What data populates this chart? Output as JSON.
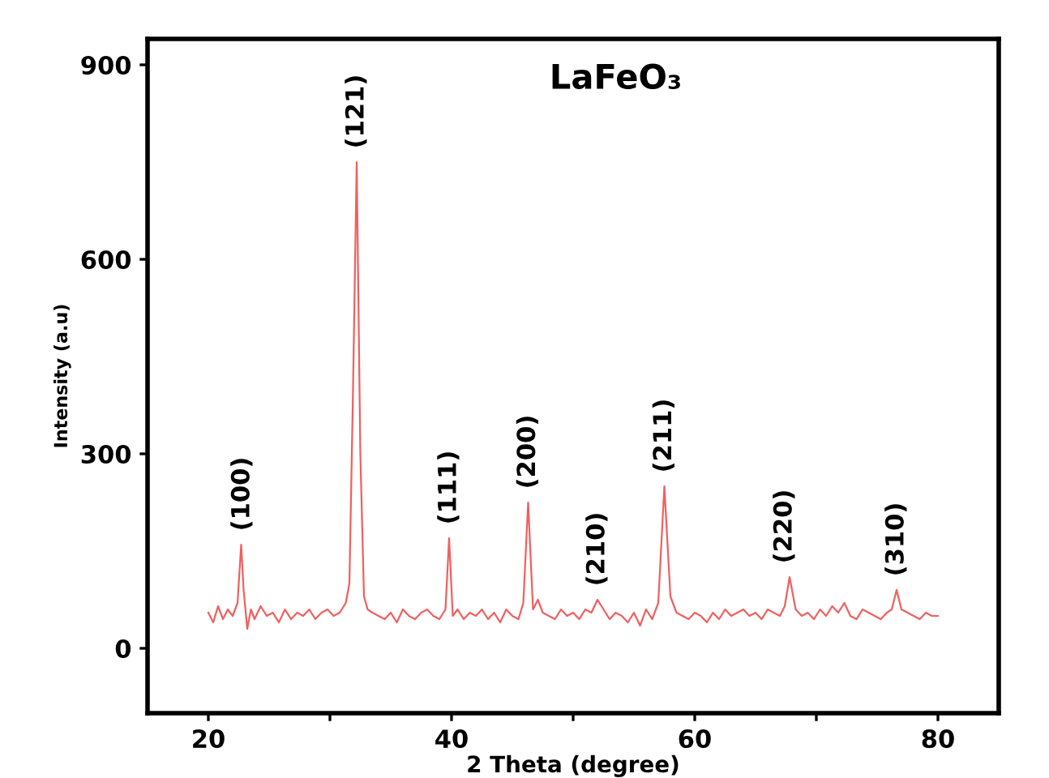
{
  "chart_data": {
    "type": "line",
    "title": "LaFeO₃",
    "xlabel": "2 Theta (degree)",
    "ylabel": "Intensity (a.u)",
    "xlim": [
      15,
      85
    ],
    "ylim": [
      -100,
      940
    ],
    "xticks": [
      20,
      {
        "value": 30,
        "label": null
      },
      40,
      {
        "value": 50,
        "label": null
      },
      60,
      {
        "value": 70,
        "label": null
      },
      80
    ],
    "yticks": [
      0,
      300,
      600,
      900
    ],
    "grid": false,
    "series": [
      {
        "color": "#f06060",
        "x": [
          20.0,
          20.4,
          20.8,
          21.2,
          21.6,
          22.0,
          22.4,
          22.7,
          22.9,
          23.2,
          23.5,
          23.8,
          24.3,
          24.8,
          25.3,
          25.8,
          26.3,
          26.8,
          27.3,
          27.8,
          28.3,
          28.8,
          29.3,
          29.8,
          30.3,
          30.8,
          31.3,
          31.6,
          31.9,
          32.2,
          32.5,
          32.8,
          33.1,
          33.5,
          34.0,
          34.5,
          35.0,
          35.5,
          36.0,
          36.5,
          37.0,
          37.5,
          38.0,
          38.5,
          39.0,
          39.5,
          39.8,
          40.1,
          40.5,
          41.0,
          41.5,
          42.0,
          42.5,
          43.0,
          43.5,
          44.0,
          44.5,
          45.0,
          45.5,
          45.9,
          46.3,
          46.7,
          47.1,
          47.5,
          48.0,
          48.5,
          49.0,
          49.5,
          50.0,
          50.5,
          51.0,
          51.5,
          52.0,
          52.5,
          53.0,
          53.5,
          54.0,
          54.5,
          55.0,
          55.5,
          56.0,
          56.5,
          57.0,
          57.5,
          58.0,
          58.5,
          59.0,
          59.5,
          60.0,
          60.5,
          61.0,
          61.5,
          62.0,
          62.5,
          63.0,
          63.5,
          64.0,
          64.5,
          65.0,
          65.5,
          66.0,
          66.5,
          67.0,
          67.4,
          67.8,
          68.3,
          68.8,
          69.3,
          69.8,
          70.3,
          70.8,
          71.3,
          71.8,
          72.3,
          72.8,
          73.3,
          73.8,
          74.3,
          74.8,
          75.3,
          75.8,
          76.2,
          76.6,
          77.0,
          77.5,
          78.0,
          78.5,
          79.0,
          79.5,
          80.0
        ],
        "values": [
          55,
          40,
          65,
          45,
          60,
          50,
          70,
          160,
          90,
          30,
          60,
          45,
          65,
          50,
          55,
          40,
          60,
          45,
          55,
          50,
          60,
          45,
          55,
          60,
          50,
          55,
          70,
          100,
          400,
          750,
          300,
          80,
          60,
          55,
          50,
          45,
          55,
          40,
          60,
          50,
          45,
          55,
          60,
          50,
          45,
          60,
          170,
          50,
          60,
          45,
          55,
          50,
          60,
          45,
          55,
          40,
          60,
          50,
          45,
          70,
          225,
          60,
          75,
          55,
          50,
          45,
          60,
          50,
          55,
          45,
          60,
          55,
          75,
          60,
          45,
          55,
          50,
          40,
          55,
          35,
          60,
          45,
          70,
          250,
          80,
          55,
          50,
          45,
          55,
          50,
          40,
          55,
          45,
          60,
          50,
          55,
          60,
          50,
          55,
          45,
          60,
          55,
          50,
          65,
          110,
          60,
          50,
          55,
          45,
          60,
          50,
          65,
          55,
          70,
          50,
          45,
          60,
          55,
          50,
          45,
          55,
          60,
          90,
          60,
          55,
          50,
          45,
          55,
          50,
          50
        ]
      }
    ],
    "annotations": [
      {
        "text": "(100)",
        "x": 22.8,
        "y": 160
      },
      {
        "text": "(121)",
        "x": 32.2,
        "y": 750
      },
      {
        "text": "(111)",
        "x": 39.8,
        "y": 170
      },
      {
        "text": "(200)",
        "x": 46.3,
        "y": 225
      },
      {
        "text": "(210)",
        "x": 52.0,
        "y": 75
      },
      {
        "text": "(211)",
        "x": 57.5,
        "y": 250
      },
      {
        "text": "(220)",
        "x": 67.4,
        "y": 110
      },
      {
        "text": "(310)",
        "x": 76.6,
        "y": 90
      }
    ]
  }
}
